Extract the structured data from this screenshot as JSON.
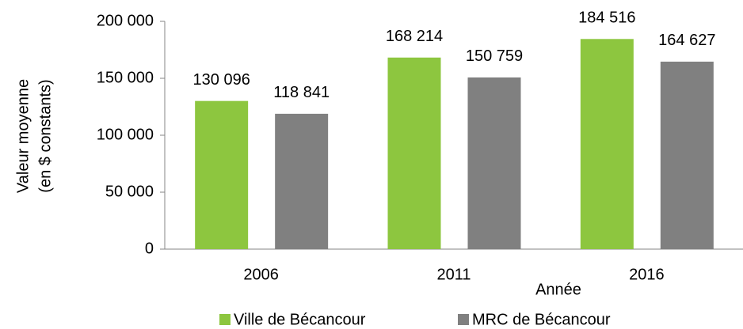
{
  "chart_data": {
    "type": "bar",
    "y_label": [
      "Valeur moyenne",
      "(en $ constants)"
    ],
    "x_label": "Année",
    "categories": [
      "2006",
      "2011",
      "2016"
    ],
    "series": [
      {
        "name": "Ville de Bécancour",
        "color": "#8dc63f",
        "values": [
          130096,
          168214,
          184516
        ],
        "value_labels": [
          "130 096",
          "168 214",
          "184 516"
        ]
      },
      {
        "name": "MRC de Bécancour",
        "color": "#808080",
        "values": [
          118841,
          150759,
          164627
        ],
        "value_labels": [
          "118 841",
          "150 759",
          "164 627"
        ]
      }
    ],
    "ylim": [
      0,
      200000
    ],
    "yticks": [
      0,
      {
        "value": 50000,
        "label": "50 000"
      },
      {
        "value": 100000,
        "label": "100 000"
      },
      {
        "value": 150000,
        "label": "150 000"
      },
      {
        "value": 200000,
        "label": "200 000"
      }
    ],
    "grid": false,
    "legend": "bottom"
  }
}
